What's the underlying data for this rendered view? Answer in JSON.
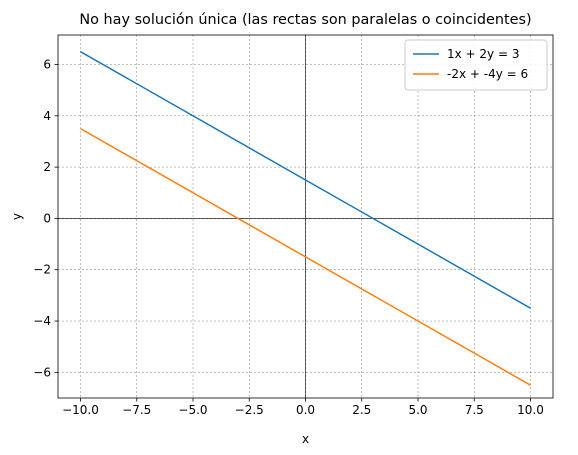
{
  "chart_data": {
    "type": "line",
    "title": "No hay solución única (las rectas son paralelas o coincidentes)",
    "xlabel": "x",
    "ylabel": "y",
    "xlim": [
      -11,
      11
    ],
    "ylim": [
      -7.0,
      7.15
    ],
    "xticks": [
      -10.0,
      -7.5,
      -5.0,
      -2.5,
      0.0,
      2.5,
      5.0,
      7.5,
      10.0
    ],
    "xtick_labels": [
      "−10.0",
      "−7.5",
      "−5.0",
      "−2.5",
      "0.0",
      "2.5",
      "5.0",
      "7.5",
      "10.0"
    ],
    "yticks": [
      -6,
      -4,
      -2,
      0,
      2,
      4,
      6
    ],
    "ytick_labels": [
      "−6",
      "−4",
      "−2",
      "0",
      "2",
      "4",
      "6"
    ],
    "grid": true,
    "legend_position": "top-right",
    "series": [
      {
        "name": "1x + 2y = 3",
        "color": "#1f77b4",
        "x": [
          -10,
          10
        ],
        "y": [
          6.5,
          -3.5
        ]
      },
      {
        "name": "-2x + -4y = 6",
        "color": "#ff7f0e",
        "x": [
          -10,
          10
        ],
        "y": [
          3.5,
          -6.5
        ]
      }
    ]
  }
}
